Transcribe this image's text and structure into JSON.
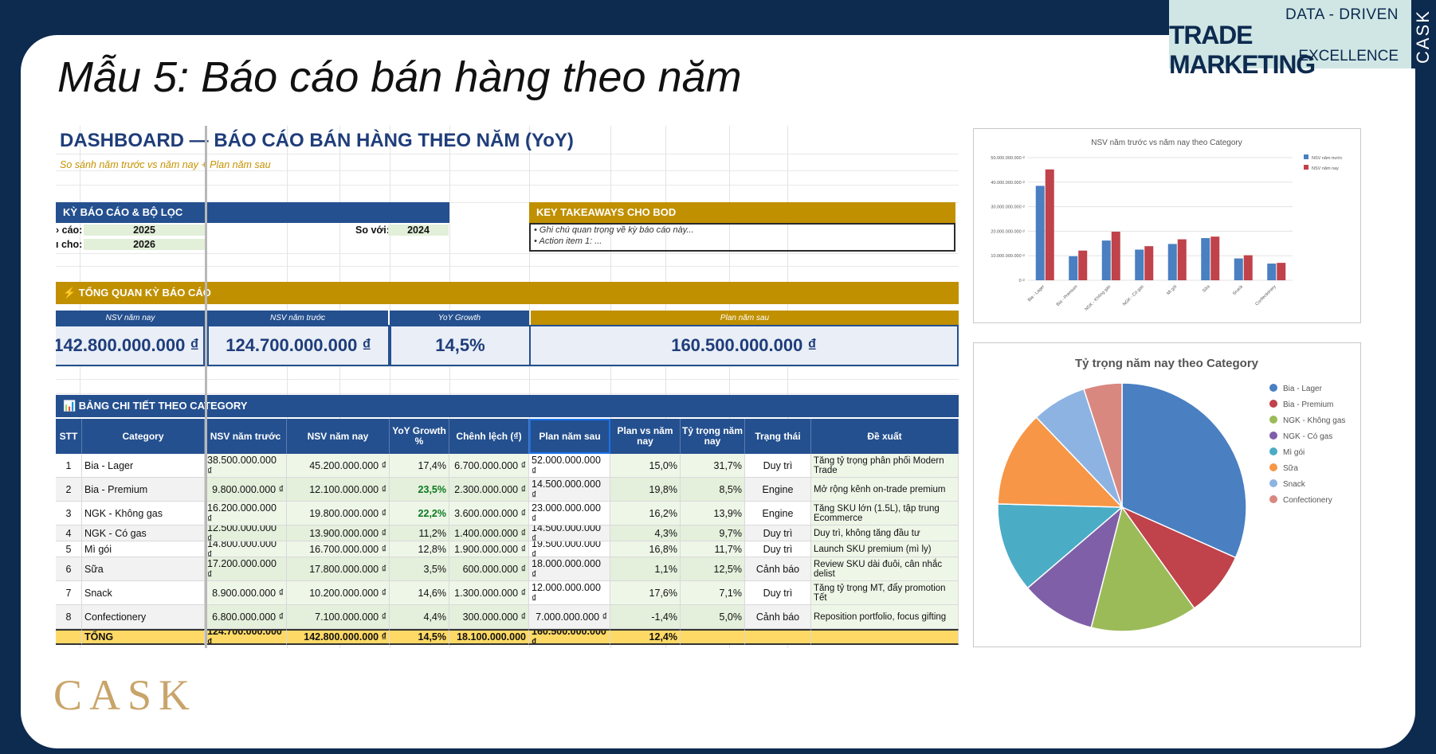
{
  "slide": {
    "title": "Mẫu 5: Báo cáo bán hàng theo năm",
    "brand_line1": "DATA - DRIVEN",
    "brand_line2": "TRADE MARKETING",
    "brand_line3": "EXCELLENCE",
    "brand_vertical": "CASK",
    "logo": "CASK"
  },
  "dashboard": {
    "title": "DASHBOARD — BÁO CÁO BÁN HÀNG THEO NĂM (YoY)",
    "subtitle": "So sánh năm trước vs năm nay + Plan năm sau",
    "filter_header": "KỲ BÁO CÁO & BỘ LỌC",
    "filter_row1_label": "› cáo:",
    "filter_row1_value": "2025",
    "filter_row2_label": "ı cho:",
    "filter_row2_value": "2026",
    "compare_label": "So với:",
    "compare_value": "2024",
    "takeaways_header": "KEY TAKEAWAYS CHO BOD",
    "takeaway_1": "• Ghi chú quan trọng về kỳ báo cáo này...",
    "takeaway_2": "• Action item 1: ...",
    "overview_header": "⚡ TỔNG QUAN KỲ BÁO CÁO",
    "kpi_headers": [
      "NSV năm nay",
      "NSV năm trước",
      "YoY Growth",
      "Plan năm sau"
    ],
    "kpi_values": [
      "142.800.000.000 ₫",
      "124.700.000.000 ₫",
      "14,5%",
      "160.500.000.000 ₫"
    ],
    "detail_header": "📊 BẢNG CHI TIẾT THEO CATEGORY"
  },
  "table": {
    "columns": [
      "STT",
      "Category",
      "NSV năm trước",
      "NSV năm nay",
      "YoY Growth %",
      "Chênh lệch (₫)",
      "Plan năm sau",
      "Plan vs năm nay",
      "Tỷ trọng năm nay",
      "Trạng thái",
      "Đề xuất"
    ],
    "rows": [
      [
        "1",
        "Bia - Lager",
        "38.500.000.000 ₫",
        "45.200.000.000 ₫",
        "17,4%",
        "6.700.000.000 ₫",
        "52.000.000.000 ₫",
        "15,0%",
        "31,7%",
        "Duy trì",
        "Tăng tỷ trọng phân phối Modern Trade"
      ],
      [
        "2",
        "Bia - Premium",
        "9.800.000.000 ₫",
        "12.100.000.000 ₫",
        "23,5%",
        "2.300.000.000 ₫",
        "14.500.000.000 ₫",
        "19,8%",
        "8,5%",
        "Engine",
        "Mở rộng kênh on-trade premium"
      ],
      [
        "3",
        "NGK - Không gas",
        "16.200.000.000 ₫",
        "19.800.000.000 ₫",
        "22,2%",
        "3.600.000.000 ₫",
        "23.000.000.000 ₫",
        "16,2%",
        "13,9%",
        "Engine",
        "Tăng SKU lớn (1.5L), tập trung Ecommerce"
      ],
      [
        "4",
        "NGK - Có gas",
        "12.500.000.000 ₫",
        "13.900.000.000 ₫",
        "11,2%",
        "1.400.000.000 ₫",
        "14.500.000.000 ₫",
        "4,3%",
        "9,7%",
        "Duy trì",
        "Duy trì, không tăng đầu tư"
      ],
      [
        "5",
        "Mì gói",
        "14.800.000.000 ₫",
        "16.700.000.000 ₫",
        "12,8%",
        "1.900.000.000 ₫",
        "19.500.000.000 ₫",
        "16,8%",
        "11,7%",
        "Duy trì",
        "Launch SKU premium (mì ly)"
      ],
      [
        "6",
        "Sữa",
        "17.200.000.000 ₫",
        "17.800.000.000 ₫",
        "3,5%",
        "600.000.000 ₫",
        "18.000.000.000 ₫",
        "1,1%",
        "12,5%",
        "Cảnh báo",
        "Review SKU dài đuôi, cân nhắc delist"
      ],
      [
        "7",
        "Snack",
        "8.900.000.000 ₫",
        "10.200.000.000 ₫",
        "14,6%",
        "1.300.000.000 ₫",
        "12.000.000.000 ₫",
        "17,6%",
        "7,1%",
        "Duy trì",
        "Tăng tỷ trọng MT, đẩy promotion Tết"
      ],
      [
        "8",
        "Confectionery",
        "6.800.000.000 ₫",
        "7.100.000.000 ₫",
        "4,4%",
        "300.000.000 ₫",
        "7.000.000.000 ₫",
        "-1,4%",
        "5,0%",
        "Cảnh báo",
        "Reposition portfolio, focus gifting"
      ]
    ],
    "total": [
      "",
      "TỔNG",
      "124.700.000.000 ₫",
      "142.800.000.000 ₫",
      "14,5%",
      "18.100.000.000",
      "160.500.000.000 ₫",
      "12,4%",
      "",
      "",
      ""
    ]
  },
  "colors": {
    "navy": "#0d2a4f",
    "header_blue": "#24508f",
    "gold": "#c09000",
    "growth_highlight": "#c6efce",
    "total_row": "#ffd966",
    "series_prev": "#4a7fc1",
    "series_curr": "#c0424a"
  },
  "chart_data": [
    {
      "type": "bar",
      "title": "NSV năm trước vs năm nay theo Category",
      "categories": [
        "Bia - Lager",
        "Bia - Premium",
        "NGK - Không gas",
        "NGK - Có gas",
        "Mì gói",
        "Sữa",
        "Snack",
        "Confectionery"
      ],
      "series": [
        {
          "name": "NSV năm trước",
          "values": [
            38500000000,
            9800000000,
            16200000000,
            12500000000,
            14800000000,
            17200000000,
            8900000000,
            6800000000
          ]
        },
        {
          "name": "NSV năm nay",
          "values": [
            45200000000,
            12100000000,
            19800000000,
            13900000000,
            16700000000,
            17800000000,
            10200000000,
            7100000000
          ]
        }
      ],
      "yticks": [
        "0 ₫",
        "10.000.000.000 ₫",
        "20.000.000.000 ₫",
        "30.000.000.000 ₫",
        "40.000.000.000 ₫",
        "50.000.000.000 ₫"
      ],
      "ylim": [
        0,
        50000000000
      ],
      "legend": "top-right"
    },
    {
      "type": "pie",
      "title": "Tỷ trọng năm nay theo Category",
      "labels": [
        "Bia - Lager",
        "Bia - Premium",
        "NGK - Không gas",
        "NGK - Có gas",
        "Mì gói",
        "Sữa",
        "Snack",
        "Confectionery"
      ],
      "values": [
        45200000000,
        12100000000,
        19800000000,
        13900000000,
        16700000000,
        17800000000,
        10200000000,
        7100000000
      ],
      "colors": [
        "#4a7fc1",
        "#c0424a",
        "#9bbb59",
        "#7f5fa8",
        "#4bacc6",
        "#f79646",
        "#8db3e2",
        "#d98880"
      ],
      "legend": "right"
    }
  ]
}
